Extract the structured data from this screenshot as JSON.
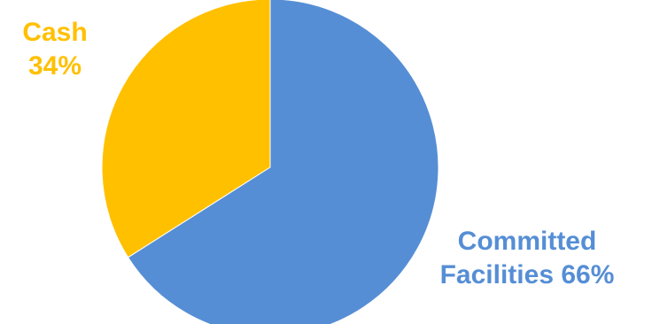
{
  "chart_data": {
    "type": "pie",
    "title": "",
    "start_angle_deg": 0,
    "direction": "counterclockwise",
    "legend": "none",
    "slices": [
      {
        "label": "Cash",
        "label_line1": "Cash",
        "label_line2": "34%",
        "value": 34,
        "color": "#FFC000"
      },
      {
        "label": "Committed Facilities",
        "label_line1": "Committed",
        "label_line2": "Facilities 66%",
        "value": 66,
        "color": "#558ED5"
      }
    ]
  }
}
